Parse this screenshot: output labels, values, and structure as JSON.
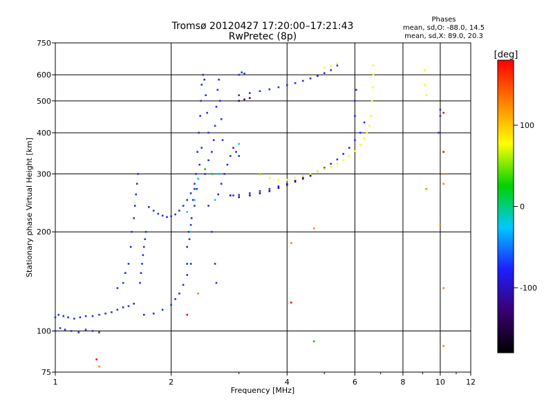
{
  "chart_data": {
    "type": "scatter",
    "title": "Tromsø 20120427 17:20:00–17:21:43",
    "subtitle": "RwPretec (8p)",
    "phases": {
      "heading": "Phases",
      "line1": "mean, sd,O: -88.0, 14.5",
      "line2": "mean, sd,X: 89.0, 20.3"
    },
    "xlabel": "Frequency [MHz]",
    "ylabel": "Stationary phase Virtual Height [km]",
    "x_scale": "log",
    "y_scale": "log",
    "xlim": [
      1,
      12
    ],
    "ylim": [
      75,
      750
    ],
    "xticks": [
      1,
      2,
      4,
      6,
      8,
      10,
      12
    ],
    "yticks": [
      75,
      100,
      200,
      300,
      400,
      500,
      600,
      750
    ],
    "grid": true,
    "colorbar": {
      "label": "[deg]",
      "range": [
        -180,
        180
      ],
      "ticks": [
        100,
        0,
        -100
      ],
      "colormap": [
        "#000000",
        "#3a0070",
        "#1e1eff",
        "#00c8ff",
        "#00d200",
        "#ffff00",
        "#ff8000",
        "#ff0000"
      ]
    },
    "series": [
      {
        "color": "#2030e0",
        "points": [
          [
            1.0,
            110
          ],
          [
            1.02,
            112
          ],
          [
            1.05,
            111
          ],
          [
            1.08,
            110
          ],
          [
            1.12,
            109
          ],
          [
            1.16,
            110
          ],
          [
            1.2,
            111
          ],
          [
            1.25,
            111
          ],
          [
            1.3,
            112
          ],
          [
            1.35,
            113
          ],
          [
            1.4,
            114
          ],
          [
            1.45,
            116
          ],
          [
            1.5,
            118
          ],
          [
            1.55,
            119
          ],
          [
            1.6,
            121
          ],
          [
            1.0,
            100
          ],
          [
            1.03,
            102
          ],
          [
            1.06,
            101
          ],
          [
            1.1,
            100
          ],
          [
            1.15,
            99
          ],
          [
            1.2,
            101
          ],
          [
            1.25,
            100
          ],
          [
            1.3,
            99
          ],
          [
            1.45,
            135
          ],
          [
            1.5,
            140
          ],
          [
            1.52,
            150
          ],
          [
            1.55,
            160
          ],
          [
            1.57,
            180
          ],
          [
            1.58,
            200
          ],
          [
            1.6,
            220
          ],
          [
            1.61,
            240
          ],
          [
            1.62,
            260
          ],
          [
            1.63,
            280
          ],
          [
            1.64,
            300
          ],
          [
            1.66,
            140
          ],
          [
            1.67,
            150
          ],
          [
            1.68,
            160
          ],
          [
            1.69,
            170
          ],
          [
            1.7,
            180
          ],
          [
            1.71,
            190
          ],
          [
            1.72,
            200
          ],
          [
            1.75,
            238
          ],
          [
            1.8,
            232
          ],
          [
            1.85,
            227
          ],
          [
            1.9,
            224
          ],
          [
            1.95,
            222
          ],
          [
            2.0,
            223
          ],
          [
            2.05,
            226
          ],
          [
            2.1,
            232
          ],
          [
            2.15,
            240
          ],
          [
            2.2,
            250
          ],
          [
            2.25,
            262
          ],
          [
            2.3,
            270
          ],
          [
            1.7,
            112
          ],
          [
            1.8,
            113
          ],
          [
            1.9,
            116
          ],
          [
            2.0,
            120
          ],
          [
            2.05,
            125
          ],
          [
            2.1,
            130
          ],
          [
            2.15,
            138
          ],
          [
            2.2,
            148
          ],
          [
            2.25,
            160
          ],
          [
            2.2,
            180
          ],
          [
            2.22,
            200
          ],
          [
            2.25,
            210
          ],
          [
            2.28,
            250
          ],
          [
            2.3,
            280
          ],
          [
            2.32,
            300
          ],
          [
            2.34,
            350
          ],
          [
            2.36,
            400
          ],
          [
            2.38,
            450
          ],
          [
            2.39,
            500
          ],
          [
            2.4,
            560
          ],
          [
            2.42,
            600
          ],
          [
            2.44,
            580
          ],
          [
            2.46,
            520
          ],
          [
            2.48,
            460
          ],
          [
            2.5,
            400
          ],
          [
            2.2,
            160
          ],
          [
            2.23,
            190
          ],
          [
            2.26,
            220
          ],
          [
            2.3,
            240
          ],
          [
            2.33,
            270
          ],
          [
            2.37,
            320
          ],
          [
            2.4,
            360
          ],
          [
            2.45,
            300
          ],
          [
            2.5,
            240
          ],
          [
            2.55,
            200
          ],
          [
            2.6,
            160
          ],
          [
            2.62,
            140
          ],
          [
            2.5,
            330
          ],
          [
            2.55,
            350
          ],
          [
            2.58,
            380
          ],
          [
            2.6,
            420
          ],
          [
            2.62,
            480
          ],
          [
            2.64,
            540
          ],
          [
            2.66,
            580
          ],
          [
            2.68,
            500
          ],
          [
            2.7,
            440
          ],
          [
            2.72,
            380
          ],
          [
            2.65,
            260
          ],
          [
            2.7,
            280
          ],
          [
            2.75,
            300
          ],
          [
            2.8,
            320
          ],
          [
            2.85,
            340
          ],
          [
            2.9,
            360
          ],
          [
            2.95,
            350
          ],
          [
            3.0,
            340
          ],
          [
            2.9,
            258
          ],
          [
            3.0,
            259
          ],
          [
            3.2,
            262
          ],
          [
            3.4,
            266
          ],
          [
            3.6,
            270
          ],
          [
            3.8,
            275
          ],
          [
            4.0,
            280
          ],
          [
            4.2,
            286
          ],
          [
            4.4,
            292
          ],
          [
            4.6,
            298
          ],
          [
            4.8,
            305
          ],
          [
            5.0,
            313
          ],
          [
            5.2,
            322
          ],
          [
            5.4,
            332
          ],
          [
            5.6,
            345
          ],
          [
            5.8,
            360
          ],
          [
            6.0,
            380
          ],
          [
            6.2,
            400
          ],
          [
            6.35,
            430
          ],
          [
            3.0,
            520
          ],
          [
            3.2,
            528
          ],
          [
            3.4,
            535
          ],
          [
            3.6,
            542
          ],
          [
            3.8,
            550
          ],
          [
            4.0,
            558
          ],
          [
            4.2,
            566
          ],
          [
            4.4,
            575
          ],
          [
            4.6,
            585
          ],
          [
            4.8,
            595
          ],
          [
            5.0,
            607
          ],
          [
            5.2,
            620
          ],
          [
            5.4,
            640
          ],
          [
            3.0,
            600
          ],
          [
            3.05,
            610
          ],
          [
            3.1,
            605
          ],
          [
            6.0,
            450
          ],
          [
            6.0,
            500
          ],
          [
            6.05,
            540
          ],
          [
            10.0,
            450
          ],
          [
            10.0,
            470
          ],
          [
            9.9,
            400
          ]
        ]
      },
      {
        "color": "#3a0070",
        "points": [
          [
            2.85,
            258
          ],
          [
            3.0,
            255
          ],
          [
            3.2,
            258
          ],
          [
            3.4,
            262
          ],
          [
            3.6,
            266
          ],
          [
            3.8,
            272
          ],
          [
            4.0,
            278
          ],
          [
            4.2,
            284
          ],
          [
            4.4,
            290
          ],
          [
            4.6,
            296
          ],
          [
            3.0,
            500
          ],
          [
            3.1,
            505
          ],
          [
            3.2,
            510
          ]
        ]
      },
      {
        "color": "#ffff00",
        "points": [
          [
            3.4,
            298
          ],
          [
            3.6,
            292
          ],
          [
            3.8,
            288
          ],
          [
            4.0,
            288
          ],
          [
            4.2,
            292
          ],
          [
            4.4,
            296
          ],
          [
            4.6,
            300
          ],
          [
            4.8,
            305
          ],
          [
            5.0,
            310
          ],
          [
            5.2,
            315
          ],
          [
            5.4,
            322
          ],
          [
            5.6,
            330
          ],
          [
            5.8,
            340
          ],
          [
            6.0,
            352
          ],
          [
            6.2,
            368
          ],
          [
            6.35,
            385
          ],
          [
            6.45,
            400
          ],
          [
            6.55,
            420
          ],
          [
            6.6,
            450
          ],
          [
            6.65,
            500
          ],
          [
            6.68,
            550
          ],
          [
            6.7,
            600
          ],
          [
            6.7,
            640
          ],
          [
            5.0,
            630
          ],
          [
            5.2,
            640
          ],
          [
            5.4,
            650
          ],
          [
            9.1,
            620
          ],
          [
            9.1,
            560
          ],
          [
            9.2,
            520
          ]
        ]
      },
      {
        "color": "#00c8ff",
        "points": [
          [
            2.25,
            200
          ],
          [
            2.3,
            250
          ],
          [
            2.35,
            290
          ],
          [
            2.6,
            250
          ],
          [
            2.65,
            300
          ],
          [
            2.2,
            230
          ],
          [
            3.0,
            370
          ]
        ]
      },
      {
        "color": "#00d200",
        "points": [
          [
            2.45,
            310
          ],
          [
            2.55,
            300
          ],
          [
            4.7,
            93
          ]
        ]
      },
      {
        "color": "#ff0000",
        "points": [
          [
            1.28,
            82
          ],
          [
            2.2,
            112
          ],
          [
            4.1,
            122
          ],
          [
            10.2,
            350
          ],
          [
            10.2,
            460
          ]
        ]
      },
      {
        "color": "#ff8000",
        "points": [
          [
            1.3,
            78
          ],
          [
            2.35,
            130
          ],
          [
            4.1,
            185
          ],
          [
            4.7,
            205
          ],
          [
            10.2,
            90
          ],
          [
            10.2,
            135
          ],
          [
            10.0,
            210
          ],
          [
            9.2,
            270
          ],
          [
            10.2,
            280
          ],
          [
            10.2,
            300
          ]
        ]
      }
    ]
  }
}
